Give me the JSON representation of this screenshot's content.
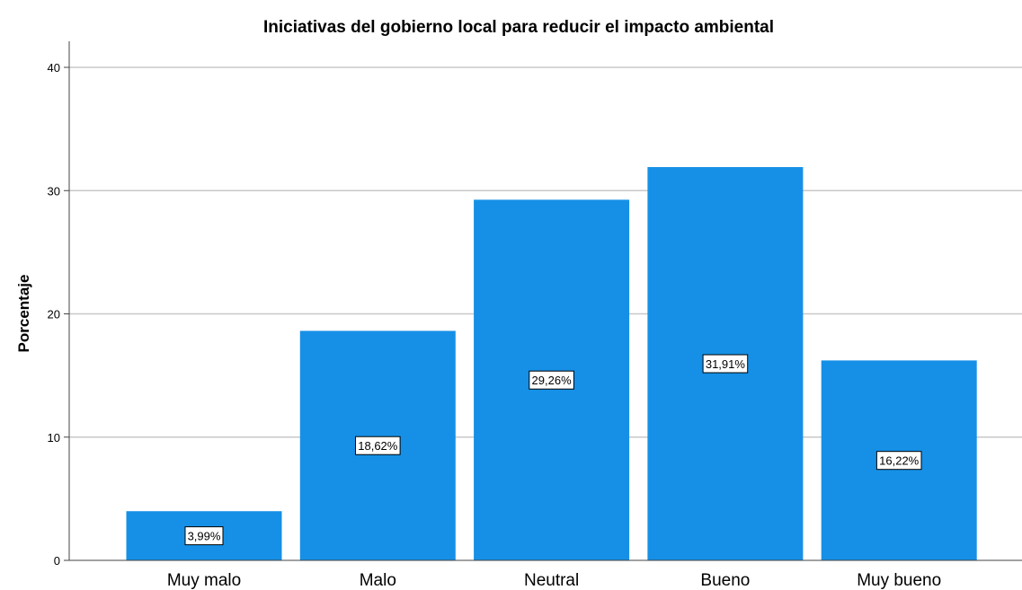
{
  "chart_data": {
    "type": "bar",
    "title": "Iniciativas del gobierno local para reducir el impacto ambiental",
    "xlabel": "",
    "ylabel": "Porcentaje",
    "categories": [
      "Muy malo",
      "Malo",
      "Neutral",
      "Bueno",
      "Muy bueno"
    ],
    "values": [
      3.99,
      18.62,
      29.26,
      31.91,
      16.22
    ],
    "data_labels": [
      "3,99%",
      "18,62%",
      "29,26%",
      "31,91%",
      "16,22%"
    ],
    "ylim": [
      0,
      40
    ],
    "yticks": [
      0,
      10,
      20,
      30,
      40
    ],
    "ytick_labels": [
      "0",
      "10",
      "20",
      "30",
      "40"
    ],
    "grid": true,
    "legend": "none",
    "colors": {
      "bar": "#1690e6",
      "grid": "#c8c8c8",
      "axis": "#444444",
      "label_box": "#ffffff"
    }
  }
}
